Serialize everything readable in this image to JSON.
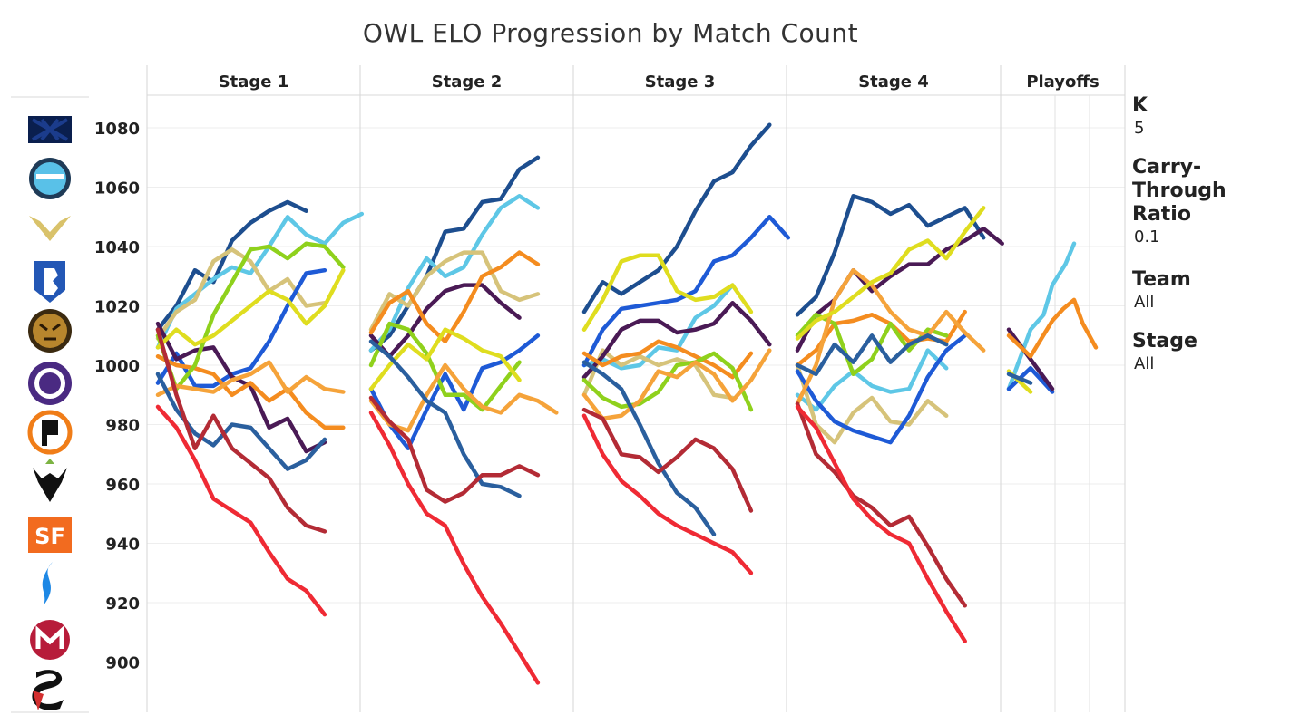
{
  "title": "OWL ELO Progression by Match Count",
  "legend": {
    "k_title": "K",
    "k_value": "5",
    "ratio_title": "Carry-Through Ratio",
    "ratio_value": "0.1",
    "team_title": "Team",
    "team_value": "All",
    "stage_title": "Stage",
    "stage_value": "All"
  },
  "team_logos": [
    {
      "icon": "new-york-excelsior-logo-icon",
      "color": "#1b3c8c"
    },
    {
      "icon": "london-spitfire-logo-icon",
      "color": "#59c1e8"
    },
    {
      "icon": "los-angeles-valiant-logo-icon",
      "color": "#d9c26a"
    },
    {
      "icon": "boston-uprising-logo-icon",
      "color": "#2357b5"
    },
    {
      "icon": "seoul-dynasty-logo-icon",
      "color": "#b8862d"
    },
    {
      "icon": "los-angeles-gladiators-logo-icon",
      "color": "#4a2a82"
    },
    {
      "icon": "philadelphia-fusion-logo-icon",
      "color": "#f07d18"
    },
    {
      "icon": "houston-outlaws-logo-icon",
      "color": "#7cb342"
    },
    {
      "icon": "san-francisco-shock-logo-icon",
      "color": "#f26b1f"
    },
    {
      "icon": "dallas-fuel-logo-icon",
      "color": "#1e88e5"
    },
    {
      "icon": "florida-mayhem-logo-icon",
      "color": "#b71c3a"
    },
    {
      "icon": "shanghai-dragons-logo-icon",
      "color": "#d32f2f"
    }
  ],
  "chart_data": {
    "type": "line",
    "title": "OWL ELO Progression by Match Count",
    "ylabel": "",
    "ylim": [
      880,
      1092
    ],
    "yticks": [
      900,
      920,
      940,
      960,
      980,
      1000,
      1020,
      1040,
      1060,
      1080
    ],
    "panels": [
      {
        "label": "Stage 1",
        "n": 10
      },
      {
        "label": "Stage 2",
        "n": 10
      },
      {
        "label": "Stage 3",
        "n": 10
      },
      {
        "label": "Stage 4",
        "n": 10
      },
      {
        "label": "Playoffs",
        "n": 0,
        "sub": 3
      }
    ],
    "grid": true,
    "series": [
      {
        "color": "#1d4e8f",
        "stages": [
          [
            1012,
            1020,
            1032,
            1028,
            1042,
            1048,
            1052,
            1055,
            1052
          ],
          [
            1005,
            1010,
            1020,
            1030,
            1045,
            1046,
            1055,
            1056,
            1066,
            1070
          ],
          [
            1018,
            1028,
            1024,
            1028,
            1032,
            1040,
            1052,
            1062,
            1065,
            1074,
            1081
          ],
          [
            1017,
            1023,
            1038,
            1057,
            1055,
            1051,
            1054,
            1047,
            1050,
            1053,
            1043
          ],
          []
        ]
      },
      {
        "color": "#5ec7e6",
        "stages": [
          [
            1006,
            1019,
            1024,
            1029,
            1033,
            1031,
            1040,
            1050,
            1044,
            1041,
            1048,
            1051
          ],
          [
            1005,
            1012,
            1026,
            1036,
            1030,
            1033,
            1044,
            1053,
            1057,
            1053
          ],
          [
            1000,
            1002,
            999,
            1000,
            1006,
            1005,
            1016,
            1020,
            1027
          ],
          [
            990,
            985,
            993,
            998,
            993,
            991,
            992,
            1005,
            999
          ],
          [
            [
              0,
              992
            ],
            [
              1,
              1012
            ],
            [
              1.6,
              1017
            ],
            [
              2,
              1027
            ],
            [
              2.6,
              1034
            ],
            [
              3,
              1041
            ]
          ]
        ]
      },
      {
        "color": "#d6c37a",
        "stages": [
          [
            1009,
            1018,
            1022,
            1035,
            1039,
            1035,
            1025,
            1029,
            1020,
            1021
          ],
          [
            1012,
            1024,
            1020,
            1030,
            1035,
            1038,
            1038,
            1025,
            1022,
            1024
          ],
          [
            990,
            1005,
            1000,
            1003,
            1000,
            1002,
            1000,
            990,
            989
          ],
          [
            1000,
            980,
            974,
            984,
            989,
            981,
            980,
            988,
            983
          ],
          []
        ]
      },
      {
        "color": "#1e5ad6",
        "stages": [
          [
            994,
            1004,
            993,
            993,
            997,
            999,
            1008,
            1020,
            1031,
            1032
          ],
          [
            992,
            980,
            972,
            985,
            997,
            985,
            999,
            1001,
            1005,
            1010
          ],
          [
            1000,
            1012,
            1019,
            1020,
            1021,
            1022,
            1025,
            1035,
            1037,
            1043,
            1050,
            1043
          ],
          [
            998,
            988,
            981,
            978,
            976,
            974,
            983,
            996,
            1005,
            1010
          ],
          [
            [
              0,
              992
            ],
            [
              1,
              999
            ],
            [
              2,
              991
            ]
          ]
        ]
      },
      {
        "color": "#4a1a55",
        "stages": [
          [
            1014,
            1002,
            1005,
            1006,
            996,
            993,
            979,
            982,
            971,
            974
          ],
          [
            1010,
            1003,
            1010,
            1019,
            1025,
            1027,
            1027,
            1021,
            1016
          ],
          [
            996,
            1003,
            1012,
            1015,
            1015,
            1011,
            1012,
            1014,
            1021,
            1015,
            1007
          ],
          [
            1005,
            1017,
            1022,
            1032,
            1025,
            1030,
            1034,
            1034,
            1039,
            1042,
            1046,
            1041
          ],
          [
            [
              0,
              1012
            ],
            [
              1,
              1002
            ],
            [
              2,
              992
            ]
          ]
        ]
      },
      {
        "color": "#f48c1f",
        "stages": [
          [
            1003,
            1000,
            999,
            997,
            990,
            994,
            988,
            992,
            984,
            979,
            979
          ],
          [
            1011,
            1021,
            1025,
            1014,
            1008,
            1018,
            1030,
            1033,
            1038,
            1034
          ],
          [
            1004,
            1000,
            1003,
            1004,
            1008,
            1006,
            1003,
            1000,
            996,
            1004
          ],
          [
            1000,
            1005,
            1014,
            1015,
            1017,
            1014,
            1008,
            1009,
            1008,
            1018
          ],
          [
            [
              0,
              1010
            ],
            [
              1,
              1003
            ],
            [
              2,
              1015
            ],
            [
              2.5,
              1019
            ],
            [
              3,
              1022
            ],
            [
              3.4,
              1014
            ],
            [
              4,
              1006
            ]
          ]
        ]
      },
      {
        "color": "#8fd11c",
        "stages": [
          [
            1010,
            992,
            1000,
            1017,
            1028,
            1039,
            1040,
            1036,
            1041,
            1040,
            1033
          ],
          [
            1000,
            1014,
            1012,
            1004,
            990,
            990,
            985,
            993,
            1001
          ],
          [
            995,
            989,
            986,
            987,
            991,
            1000,
            1001,
            1004,
            999,
            985
          ],
          [
            1010,
            1017,
            1014,
            997,
            1002,
            1014,
            1005,
            1012,
            1010
          ],
          []
        ]
      },
      {
        "color": "#f5a33a",
        "stages": [
          [
            990,
            993,
            992,
            991,
            995,
            997,
            1001,
            991,
            996,
            992,
            991
          ],
          [
            988,
            980,
            978,
            990,
            1000,
            992,
            986,
            984,
            990,
            988,
            984
          ],
          [
            990,
            982,
            983,
            988,
            998,
            996,
            1001,
            997,
            988,
            995,
            1005
          ],
          [
            987,
            1000,
            1022,
            1032,
            1027,
            1018,
            1012,
            1010,
            1018,
            1011,
            1005
          ],
          []
        ]
      },
      {
        "color": "#dfdd1f",
        "stages": [
          [
            1006,
            1012,
            1007,
            1010,
            1015,
            1020,
            1025,
            1022,
            1014,
            1020,
            1032
          ],
          [
            992,
            1000,
            1007,
            1002,
            1012,
            1009,
            1005,
            1003,
            995
          ],
          [
            1012,
            1022,
            1035,
            1037,
            1037,
            1025,
            1022,
            1023,
            1027,
            1018
          ],
          [
            1009,
            1015,
            1018,
            1023,
            1028,
            1031,
            1039,
            1042,
            1036,
            1045,
            1053
          ],
          [
            [
              0,
              998
            ],
            [
              1,
              991
            ]
          ]
        ]
      },
      {
        "color": "#2a5f9e",
        "stages": [
          [
            997,
            985,
            977,
            973,
            980,
            979,
            972,
            965,
            968,
            975
          ],
          [
            1008,
            1003,
            996,
            988,
            984,
            970,
            960,
            959,
            956
          ],
          [
            1001,
            997,
            992,
            980,
            967,
            957,
            952,
            943
          ],
          [
            1000,
            997,
            1007,
            1001,
            1010,
            1001,
            1007,
            1010,
            1007
          ],
          [
            [
              0,
              997
            ],
            [
              1,
              994
            ]
          ]
        ]
      },
      {
        "color": "#b32b35",
        "stages": [
          [
            1012,
            990,
            972,
            983,
            972,
            967,
            962,
            952,
            946,
            944
          ],
          [
            989,
            981,
            975,
            958,
            954,
            957,
            963,
            963,
            966,
            963
          ],
          [
            985,
            982,
            970,
            969,
            964,
            969,
            975,
            972,
            965,
            951
          ],
          [
            987,
            970,
            964,
            956,
            952,
            946,
            949,
            939,
            928,
            919
          ],
          []
        ]
      },
      {
        "color": "#ef2a34",
        "stages": [
          [
            986,
            979,
            968,
            955,
            951,
            947,
            937,
            928,
            924,
            916
          ],
          [
            984,
            973,
            960,
            950,
            946,
            933,
            922,
            913,
            903,
            893
          ],
          [
            983,
            970,
            961,
            956,
            950,
            946,
            943,
            940,
            937,
            930
          ],
          [
            986,
            979,
            967,
            955,
            948,
            943,
            940,
            928,
            917,
            907
          ],
          []
        ]
      }
    ]
  }
}
